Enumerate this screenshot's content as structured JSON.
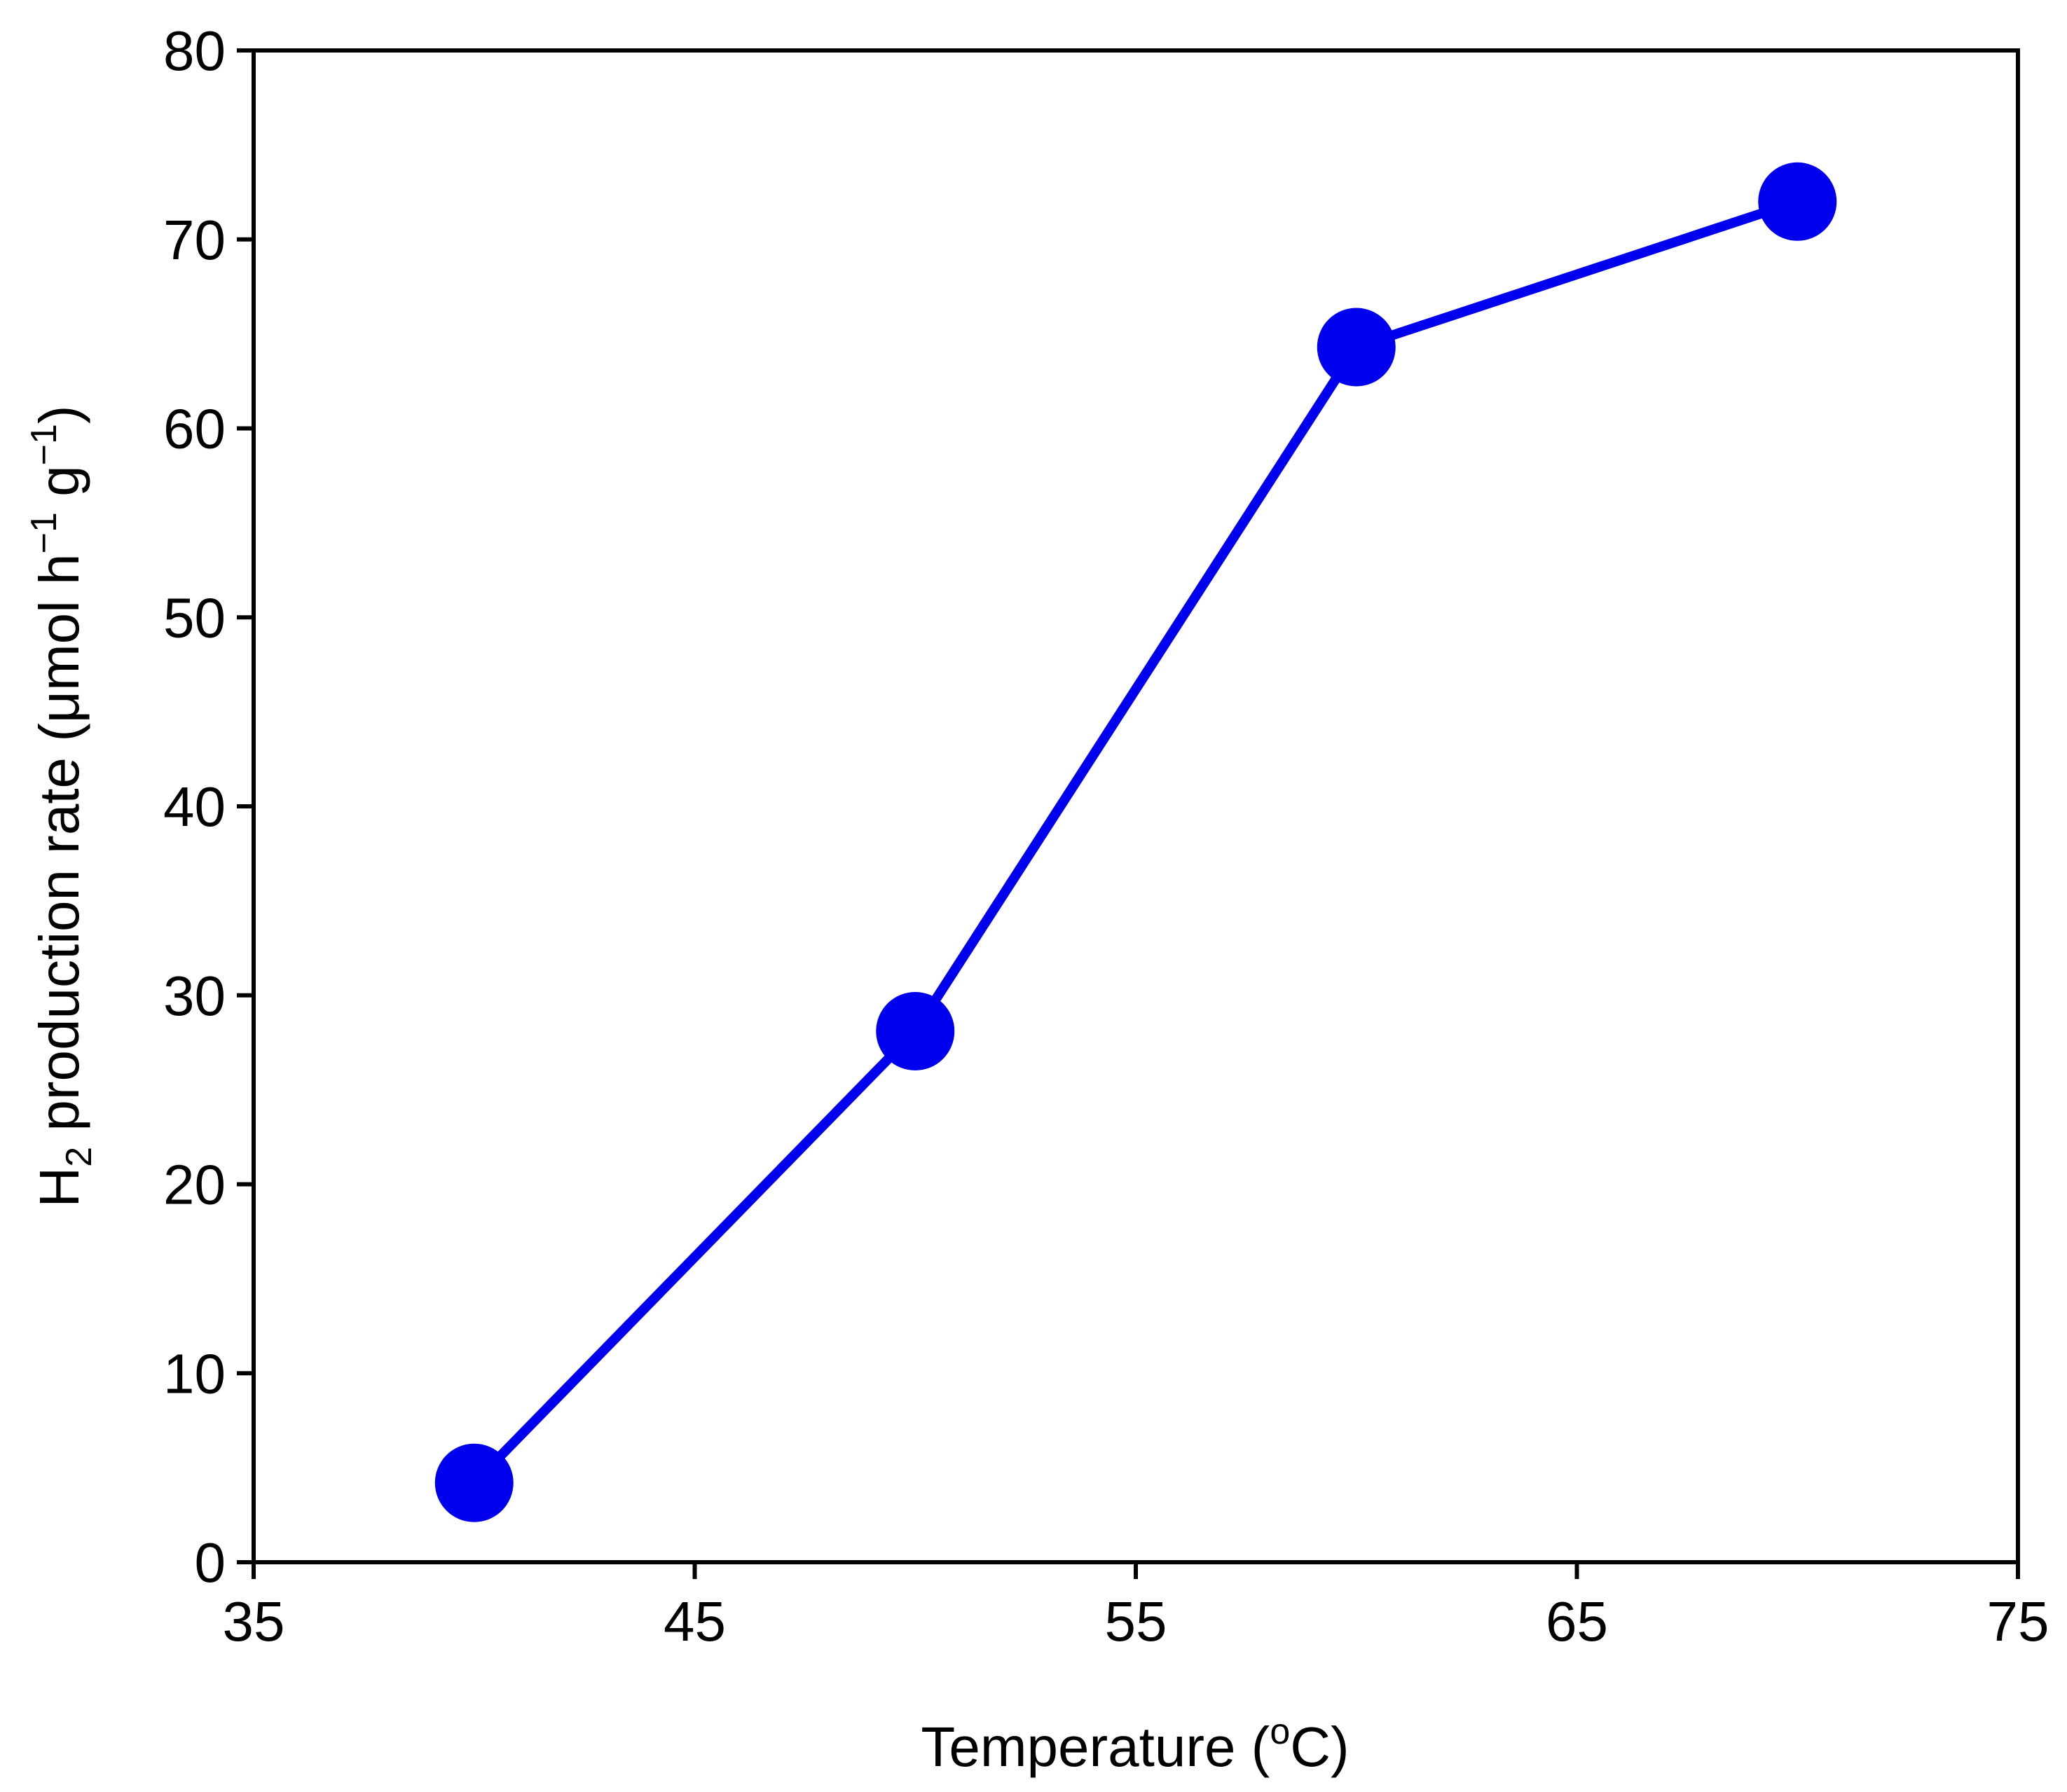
{
  "chart_data": {
    "type": "line",
    "x": [
      40,
      50,
      60,
      70
    ],
    "series": [
      {
        "values": [
          4.2,
          28.1,
          64.3,
          72.0
        ],
        "color": "#0000ee",
        "marker": "filled-circle"
      }
    ],
    "xlabel": {
      "main": "Temperature (",
      "sup": "o",
      "tail": "C)"
    },
    "ylabel": {
      "prefix": "H",
      "sub": "2",
      "middle": " production rate (μmol h",
      "sup1": "−1",
      "space": " g",
      "sup2": "−1",
      "end": ")"
    },
    "xlim": [
      35,
      75
    ],
    "ylim": [
      0,
      80
    ],
    "xticks": [
      35,
      45,
      55,
      65,
      75
    ],
    "yticks": [
      0,
      10,
      20,
      30,
      40,
      50,
      60,
      70,
      80
    ],
    "grid": false,
    "legend": "none"
  }
}
